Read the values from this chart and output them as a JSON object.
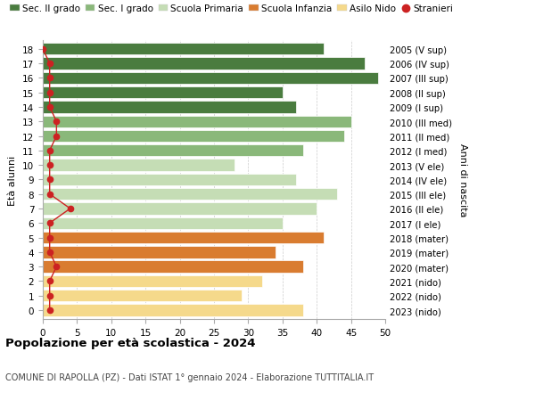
{
  "ages": [
    18,
    17,
    16,
    15,
    14,
    13,
    12,
    11,
    10,
    9,
    8,
    7,
    6,
    5,
    4,
    3,
    2,
    1,
    0
  ],
  "years": [
    "2005 (V sup)",
    "2006 (IV sup)",
    "2007 (III sup)",
    "2008 (II sup)",
    "2009 (I sup)",
    "2010 (III med)",
    "2011 (II med)",
    "2012 (I med)",
    "2013 (V ele)",
    "2014 (IV ele)",
    "2015 (III ele)",
    "2016 (II ele)",
    "2017 (I ele)",
    "2018 (mater)",
    "2019 (mater)",
    "2020 (mater)",
    "2021 (nido)",
    "2022 (nido)",
    "2023 (nido)"
  ],
  "values": [
    41,
    47,
    49,
    35,
    37,
    45,
    44,
    38,
    28,
    37,
    43,
    40,
    35,
    41,
    34,
    38,
    32,
    29,
    38
  ],
  "stranieri": [
    0,
    1,
    1,
    1,
    1,
    2,
    2,
    1,
    1,
    1,
    1,
    4,
    1,
    1,
    1,
    2,
    1,
    1,
    1
  ],
  "bar_colors": [
    "#4a7c3f",
    "#4a7c3f",
    "#4a7c3f",
    "#4a7c3f",
    "#4a7c3f",
    "#8ab87a",
    "#8ab87a",
    "#8ab87a",
    "#c5ddb5",
    "#c5ddb5",
    "#c5ddb5",
    "#c5ddb5",
    "#c5ddb5",
    "#d97c30",
    "#d97c30",
    "#d97c30",
    "#f5d98b",
    "#f5d98b",
    "#f5d98b"
  ],
  "legend_colors": [
    "#4a7c3f",
    "#8ab87a",
    "#c5ddb5",
    "#d97c30",
    "#f5d98b",
    "#cc2222"
  ],
  "legend_labels": [
    "Sec. II grado",
    "Sec. I grado",
    "Scuola Primaria",
    "Scuola Infanzia",
    "Asilo Nido",
    "Stranieri"
  ],
  "title": "Popolazione per età scolastica - 2024",
  "subtitle": "COMUNE DI RAPOLLA (PZ) - Dati ISTAT 1° gennaio 2024 - Elaborazione TUTTITALIA.IT",
  "xlabel_left": "Età alunni",
  "ylabel_right": "Anni di nascita",
  "xlim": [
    0,
    50
  ],
  "xticks": [
    0,
    5,
    10,
    15,
    20,
    25,
    30,
    35,
    40,
    45,
    50
  ],
  "stranieri_color": "#cc2222",
  "background_color": "#ffffff",
  "grid_color": "#cccccc"
}
